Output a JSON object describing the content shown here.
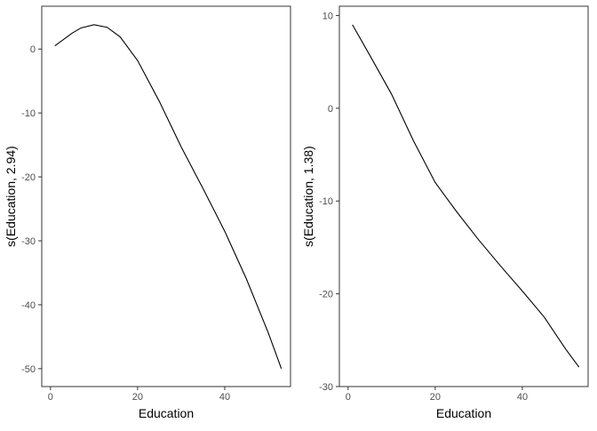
{
  "chart_data": [
    {
      "type": "line",
      "x_label": "Education",
      "y_label": "s(Education, 2.94)",
      "x": [
        1,
        3,
        5,
        7,
        10,
        13,
        16,
        20,
        25,
        30,
        35,
        40,
        45,
        50,
        53
      ],
      "series": [
        {
          "color": "#000000",
          "values": [
            0.5,
            1.5,
            2.5,
            3.3,
            3.8,
            3.4,
            1.9,
            -1.8,
            -8.2,
            -15.3,
            -21.8,
            -28.5,
            -36,
            -44.4,
            -50
          ]
        }
      ],
      "xlim": [
        -2,
        55.1
      ],
      "xticks": [
        0,
        20,
        40
      ],
      "ylim": [
        -52.8,
        6.7
      ],
      "yticks": [
        0,
        -10,
        -20,
        -30,
        -40,
        -50
      ]
    },
    {
      "type": "line",
      "x_label": "Education",
      "y_label": "s(Education, 1.38)",
      "x": [
        1,
        5,
        10,
        15,
        20,
        25,
        30,
        35,
        40,
        45,
        50,
        53
      ],
      "series": [
        {
          "color": "#000000",
          "values": [
            9,
            5.7,
            1.5,
            -3.5,
            -8,
            -11.2,
            -14.2,
            -17,
            -19.7,
            -22.5,
            -26,
            -27.9
          ]
        }
      ],
      "xlim": [
        -2,
        55.1
      ],
      "xticks": [
        0,
        20,
        40
      ],
      "ylim": [
        -30,
        11
      ],
      "yticks": [
        10,
        0,
        -10,
        -20,
        -30
      ]
    }
  ]
}
